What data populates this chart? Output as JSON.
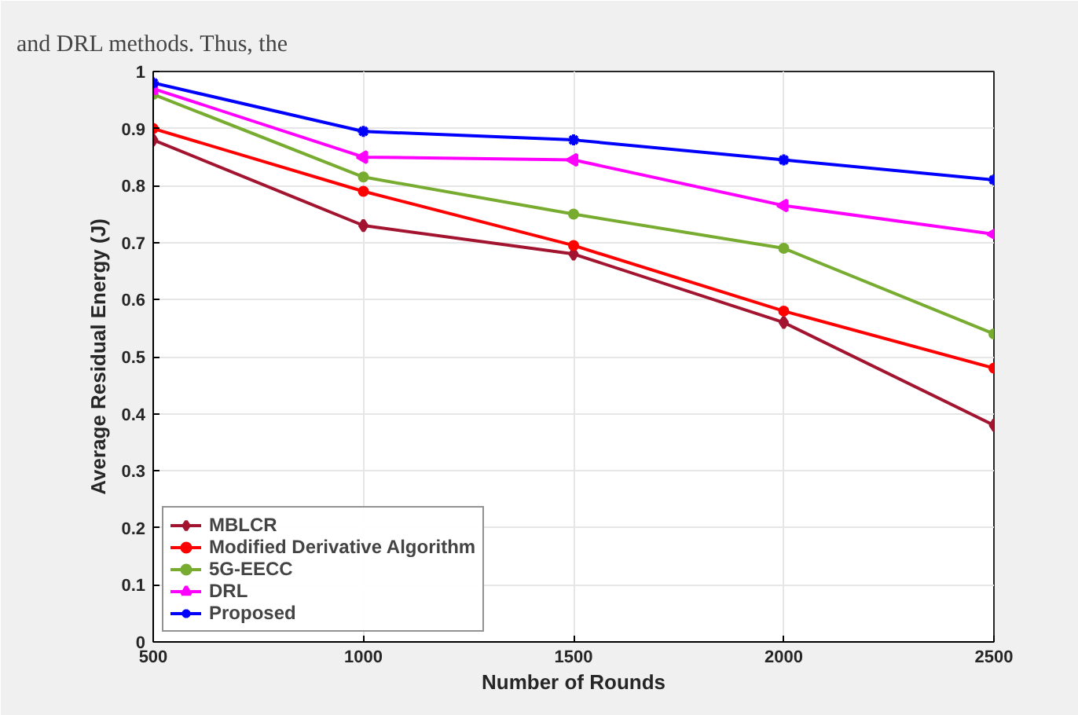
{
  "chart_data": {
    "type": "line",
    "xlabel": "Number of Rounds",
    "ylabel": "Average Residual Energy (J)",
    "annotations": [
      "and DRL methods. Thus, the"
    ],
    "x": [
      500,
      1000,
      1500,
      2000,
      2500
    ],
    "series": [
      {
        "name": "MBLCR",
        "color": "#a2142f",
        "marker": "diamond",
        "values": [
          0.88,
          0.73,
          0.68,
          0.56,
          0.38
        ]
      },
      {
        "name": "Modified Derivative Algorithm",
        "color": "#ff0000",
        "marker": "circle",
        "values": [
          0.9,
          0.79,
          0.695,
          0.58,
          0.48
        ]
      },
      {
        "name": "5G-EECC",
        "color": "#77ac30",
        "marker": "circle",
        "values": [
          0.96,
          0.815,
          0.75,
          0.69,
          0.54
        ]
      },
      {
        "name": "DRL",
        "color": "#ff00ff",
        "marker": "triangle",
        "values": [
          0.97,
          0.85,
          0.845,
          0.765,
          0.715
        ]
      },
      {
        "name": "Proposed",
        "color": "#0000ff",
        "marker": "cross",
        "values": [
          0.98,
          0.895,
          0.88,
          0.845,
          0.81
        ]
      }
    ],
    "xlim": [
      500,
      2500
    ],
    "xticks": [
      500,
      1000,
      1500,
      2000,
      2500
    ],
    "ylim": [
      0,
      1
    ],
    "yticks": [
      0,
      0.1,
      0.2,
      0.3,
      0.4,
      0.5,
      0.6,
      0.7,
      0.8,
      0.9,
      1
    ],
    "grid": true,
    "legend": "bottom left"
  }
}
